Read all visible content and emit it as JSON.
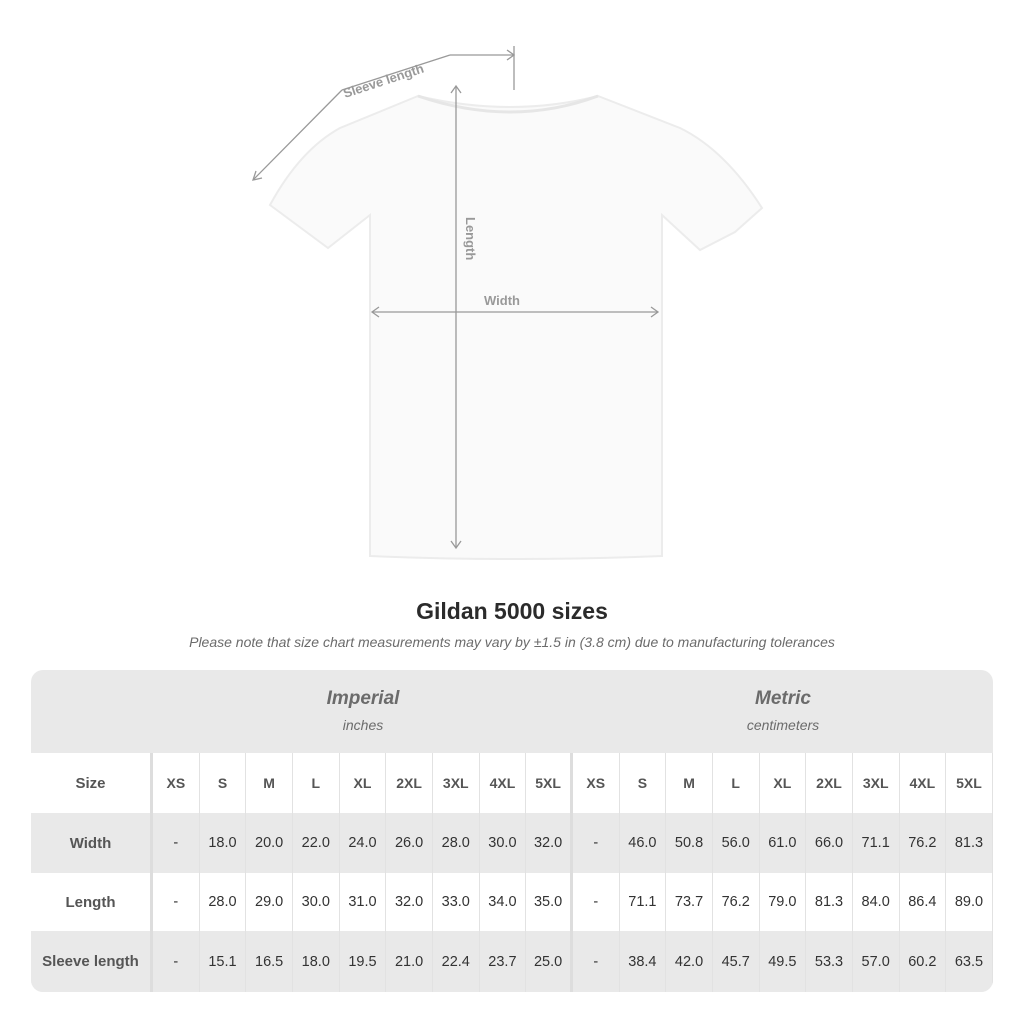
{
  "diagram": {
    "sleeve_label": "Sleeve length",
    "length_label": "Length",
    "width_label": "Width"
  },
  "title": "Gildan 5000 sizes",
  "note": "Please note that size chart measurements may vary by ±1.5 in (3.8 cm) due to manufacturing tolerances",
  "imperial": {
    "heading": "Imperial",
    "unit": "inches"
  },
  "metric": {
    "heading": "Metric",
    "unit": "centimeters"
  },
  "size_label": "Size",
  "sizes": [
    "XS",
    "S",
    "M",
    "L",
    "XL",
    "2XL",
    "3XL",
    "4XL",
    "5XL"
  ],
  "rows": [
    {
      "label": "Width",
      "imperial": [
        "-",
        "18.0",
        "20.0",
        "22.0",
        "24.0",
        "26.0",
        "28.0",
        "30.0",
        "32.0"
      ],
      "metric": [
        "-",
        "46.0",
        "50.8",
        "56.0",
        "61.0",
        "66.0",
        "71.1",
        "76.2",
        "81.3"
      ]
    },
    {
      "label": "Length",
      "imperial": [
        "-",
        "28.0",
        "29.0",
        "30.0",
        "31.0",
        "32.0",
        "33.0",
        "34.0",
        "35.0"
      ],
      "metric": [
        "-",
        "71.1",
        "73.7",
        "76.2",
        "79.0",
        "81.3",
        "84.0",
        "86.4",
        "89.0"
      ]
    },
    {
      "label": "Sleeve length",
      "imperial": [
        "-",
        "15.1",
        "16.5",
        "18.0",
        "19.5",
        "21.0",
        "22.4",
        "23.7",
        "25.0"
      ],
      "metric": [
        "-",
        "38.4",
        "42.0",
        "45.7",
        "49.5",
        "53.3",
        "57.0",
        "60.2",
        "63.5"
      ]
    }
  ]
}
